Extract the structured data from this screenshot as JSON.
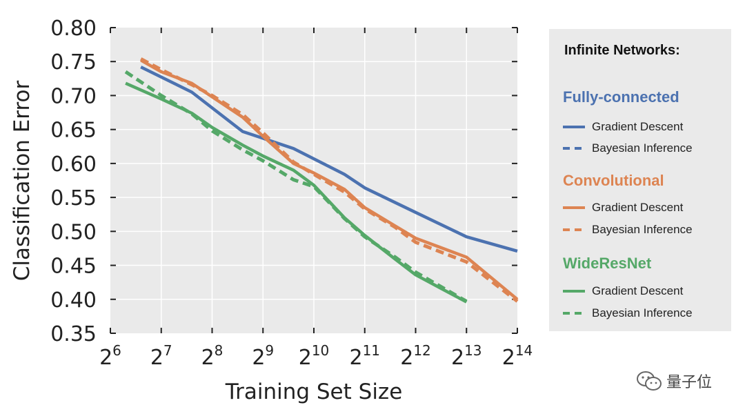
{
  "chart_data": {
    "type": "line",
    "ylabel": "Classification Error",
    "xlabel": "Training Set Size",
    "x_tick_exponents": [
      6,
      7,
      8,
      9,
      10,
      11,
      12,
      13,
      14
    ],
    "x_tick_base": "2",
    "y_ticks": [
      "0.35",
      "0.40",
      "0.45",
      "0.50",
      "0.55",
      "0.60",
      "0.65",
      "0.70",
      "0.75",
      "0.80"
    ],
    "ylim": [
      0.35,
      0.8
    ],
    "xlim_log2": [
      6,
      14
    ],
    "grid": true,
    "legend_position": "right",
    "series": [
      {
        "group": "Fully-connected",
        "name": "Gradient Descent",
        "style": "solid",
        "color": "#4c72b0",
        "x_log2": [
          6.6,
          7.6,
          8.6,
          9.6,
          10.6,
          11.0,
          12.0,
          13.0,
          14.0
        ],
        "y": [
          0.742,
          0.705,
          0.647,
          0.622,
          0.584,
          0.564,
          0.528,
          0.492,
          0.471
        ]
      },
      {
        "group": "Fully-connected",
        "name": "Bayesian Inference",
        "style": "dashed",
        "color": "#4c72b0",
        "x_log2": [],
        "y": []
      },
      {
        "group": "Convolutional",
        "name": "Gradient Descent",
        "style": "solid",
        "color": "#dd8452",
        "x_log2": [
          6.6,
          7.0,
          7.6,
          8.0,
          8.6,
          9.0,
          9.6,
          10.0,
          10.6,
          11.0,
          11.6,
          12.0,
          13.0,
          14.0
        ],
        "y": [
          0.752,
          0.735,
          0.718,
          0.698,
          0.668,
          0.64,
          0.6,
          0.586,
          0.562,
          0.535,
          0.508,
          0.49,
          0.462,
          0.4
        ]
      },
      {
        "group": "Convolutional",
        "name": "Bayesian Inference",
        "style": "dashed",
        "color": "#dd8452",
        "x_log2": [
          6.6,
          7.0,
          7.6,
          8.0,
          8.6,
          9.0,
          9.6,
          10.0,
          10.6,
          11.0,
          11.6,
          12.0,
          13.0,
          14.0
        ],
        "y": [
          0.754,
          0.738,
          0.716,
          0.7,
          0.672,
          0.645,
          0.602,
          0.584,
          0.558,
          0.533,
          0.506,
          0.484,
          0.455,
          0.397
        ]
      },
      {
        "group": "WideResNet",
        "name": "Gradient Descent",
        "style": "solid",
        "color": "#55a868",
        "x_log2": [
          6.3,
          7.0,
          7.6,
          8.0,
          8.6,
          9.0,
          9.6,
          10.0,
          10.6,
          11.0,
          11.6,
          12.0,
          13.0
        ],
        "y": [
          0.718,
          0.695,
          0.674,
          0.653,
          0.627,
          0.611,
          0.59,
          0.568,
          0.52,
          0.494,
          0.459,
          0.436,
          0.396
        ]
      },
      {
        "group": "WideResNet",
        "name": "Bayesian Inference",
        "style": "dashed",
        "color": "#55a868",
        "x_log2": [
          6.3,
          7.0,
          7.6,
          8.0,
          8.6,
          9.0,
          9.6,
          10.0,
          10.6,
          11.0,
          11.6,
          12.0,
          13.0
        ],
        "y": [
          0.735,
          0.7,
          0.673,
          0.648,
          0.62,
          0.604,
          0.576,
          0.566,
          0.519,
          0.492,
          0.462,
          0.44,
          0.397
        ]
      }
    ],
    "legend": {
      "title": "Infinite Networks:",
      "groups": [
        {
          "label": "Fully-connected",
          "color": "#4c72b0"
        },
        {
          "label": "Convolutional",
          "color": "#dd8452"
        },
        {
          "label": "WideResNet",
          "color": "#55a868"
        }
      ],
      "entry_solid": "Gradient Descent",
      "entry_dashed": "Bayesian Inference"
    }
  },
  "watermark": {
    "text": "量子位",
    "icon": "wechat-icon"
  }
}
